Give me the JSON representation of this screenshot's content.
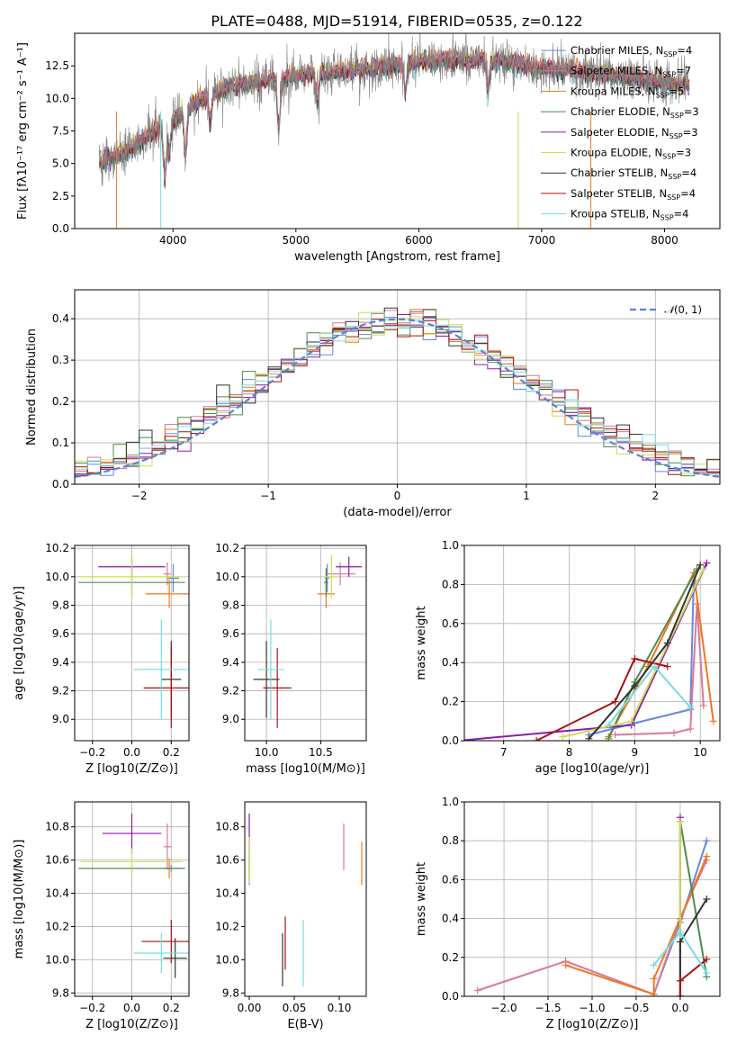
{
  "title": "PLATE=0488, MJD=51914, FIBERID=0535, z=0.122",
  "legend_prefix": [
    "Chabrier MILES, N",
    "Salpeter MILES, N",
    "Kroupa MILES, N",
    "Chabrier ELODIE, N",
    "Salpeter ELODIE, N",
    "Kroupa ELODIE, N",
    "Chabrier STELIB, N",
    "Salpeter STELIB, N",
    "Kroupa STELIB, N"
  ],
  "legend_sub": "SSP",
  "models": [
    {
      "name": "Chabrier MILES",
      "nssp": "=4",
      "color": "#6688dd"
    },
    {
      "name": "Salpeter MILES",
      "nssp": "=7",
      "color": "#dd7799"
    },
    {
      "name": "Kroupa MILES",
      "nssp": "=5",
      "color": "#ee7722"
    },
    {
      "name": "Chabrier ELODIE",
      "nssp": "=3",
      "color": "#4d8c4d"
    },
    {
      "name": "Salpeter ELODIE",
      "nssp": "=3",
      "color": "#8b1aaa"
    },
    {
      "name": "Kroupa ELODIE",
      "nssp": "=3",
      "color": "#ccdd55"
    },
    {
      "name": "Chabrier STELIB",
      "nssp": "=4",
      "color": "#333333"
    },
    {
      "name": "Salpeter STELIB",
      "nssp": "=4",
      "color": "#aa1111"
    },
    {
      "name": "Kroupa STELIB",
      "nssp": "=4",
      "color": "#77dde0"
    }
  ],
  "data_color": "#808080",
  "normal_color": "#5b80d6",
  "chart_data": [
    {
      "type": "line",
      "panel": "spectrum",
      "xlabel": "wavelength [Angstrom, rest frame]",
      "ylabel": "Flux [f",
      "ylabel_full": "Flux [fλ10⁻¹⁷ erg cm⁻² s⁻¹ A⁻¹]",
      "xlim": [
        3200,
        8450
      ],
      "ylim": [
        0,
        15.0
      ],
      "xticks": [
        "4000",
        "5000",
        "6000",
        "7000",
        "8000"
      ],
      "yticks": [
        "0.0",
        "2.5",
        "5.0",
        "7.5",
        "10.0",
        "12.5"
      ],
      "continuum": [
        [
          3400,
          5.1
        ],
        [
          3600,
          5.8
        ],
        [
          3800,
          7.2
        ],
        [
          4000,
          8.3
        ],
        [
          4200,
          9.8
        ],
        [
          4500,
          11.0
        ],
        [
          5000,
          11.7
        ],
        [
          5500,
          12.2
        ],
        [
          6000,
          12.8
        ],
        [
          6500,
          13.0
        ],
        [
          7000,
          12.4
        ],
        [
          7500,
          11.9
        ],
        [
          8000,
          11.2
        ],
        [
          8200,
          11.0
        ]
      ],
      "absorption_features": [
        [
          3934,
          0.0
        ],
        [
          3969,
          3.5
        ],
        [
          4102,
          2.2
        ],
        [
          4304,
          6.5
        ],
        [
          4861,
          3.5
        ],
        [
          5175,
          7.5
        ],
        [
          5890,
          8.5
        ],
        [
          6563,
          8.0
        ]
      ],
      "grid": false
    },
    {
      "type": "area",
      "panel": "residual-histogram",
      "xlabel": "(data-model)/error",
      "ylabel": "Normed distribution",
      "xlim": [
        -2.5,
        2.5
      ],
      "ylim": [
        0,
        0.47
      ],
      "xticks": [
        "−2",
        "−1",
        "0",
        "1",
        "2"
      ],
      "yticks": [
        "0.0",
        "0.1",
        "0.2",
        "0.3",
        "0.4"
      ],
      "series": [
        {
          "name": "N(0,1)",
          "mu": 0,
          "sigma": 1
        }
      ],
      "normal_label": "(0, 1)",
      "bin_width": 0.1,
      "grid": true
    },
    {
      "type": "scatter",
      "panel": "age-vs-metallicity",
      "xlabel": "Z [log",
      "xlabel_full": "Z [log10(Z/Z⊙)]",
      "ylabel_full": "age  [log10(age/yr)]",
      "xlim": [
        -0.29,
        0.29
      ],
      "ylim": [
        8.85,
        10.22
      ],
      "xticks": [
        "−0.2",
        "0.0",
        "0.2"
      ],
      "yticks": [
        "9.0",
        "9.2",
        "9.4",
        "9.6",
        "9.8",
        "10.0",
        "10.2"
      ],
      "points": [
        {
          "model": 0,
          "x": 0.21,
          "y": 9.99,
          "ex": 0.03,
          "ey": 0.1
        },
        {
          "model": 1,
          "x": 0.18,
          "y": 10.02,
          "ex": 0.02,
          "ey": 0.08
        },
        {
          "model": 2,
          "x": 0.19,
          "y": 9.88,
          "ex": 0.12,
          "ey": 0.1
        },
        {
          "model": 3,
          "x": 0.0,
          "y": 9.96,
          "ex": 0.27,
          "ey": 0.1
        },
        {
          "model": 4,
          "x": 0.0,
          "y": 10.07,
          "ex": 0.17,
          "ey": 0.07
        },
        {
          "model": 5,
          "x": 0.0,
          "y": 10.0,
          "ex": 0.26,
          "ey": 0.15
        },
        {
          "model": 6,
          "x": 0.2,
          "y": 9.28,
          "ex": 0.05,
          "ey": 0.27
        },
        {
          "model": 7,
          "x": 0.2,
          "y": 9.22,
          "ex": 0.14,
          "ey": 0.28
        },
        {
          "model": 8,
          "x": 0.15,
          "y": 9.35,
          "ex": 0.14,
          "ey": 0.35
        }
      ],
      "grid": true
    },
    {
      "type": "scatter",
      "panel": "age-vs-mass",
      "xlabel_full": "mass [log10(M/M⊙)]",
      "xlim": [
        9.8,
        10.92
      ],
      "ylim": [
        8.85,
        10.22
      ],
      "xticks": [
        "10.0",
        "10.5"
      ],
      "yticks": [
        "9.0",
        "9.2",
        "9.4",
        "9.6",
        "9.8",
        "10.0",
        "10.2"
      ],
      "points": [
        {
          "model": 0,
          "x": 10.56,
          "y": 9.99,
          "ex": 0.02,
          "ey": 0.1
        },
        {
          "model": 1,
          "x": 10.68,
          "y": 10.02,
          "ex": 0.14,
          "ey": 0.08
        },
        {
          "model": 2,
          "x": 10.55,
          "y": 9.88,
          "ex": 0.08,
          "ey": 0.1
        },
        {
          "model": 3,
          "x": 10.55,
          "y": 9.96,
          "ex": 0.02,
          "ey": 0.1
        },
        {
          "model": 4,
          "x": 10.76,
          "y": 10.07,
          "ex": 0.12,
          "ey": 0.07
        },
        {
          "model": 5,
          "x": 10.6,
          "y": 10.0,
          "ex": 0.06,
          "ey": 0.15
        },
        {
          "model": 6,
          "x": 10.0,
          "y": 9.28,
          "ex": 0.12,
          "ey": 0.27
        },
        {
          "model": 7,
          "x": 10.1,
          "y": 9.22,
          "ex": 0.13,
          "ey": 0.28
        },
        {
          "model": 8,
          "x": 10.04,
          "y": 9.35,
          "ex": 0.12,
          "ey": 0.35
        }
      ],
      "grid": true
    },
    {
      "type": "line",
      "panel": "mass-weight-vs-age",
      "xlabel_full": "age  [log10(age/yr)]",
      "ylabel": "mass weight",
      "xlim": [
        6.4,
        10.3
      ],
      "ylim": [
        0,
        1.0
      ],
      "xticks": [
        "7",
        "8",
        "9",
        "10"
      ],
      "yticks": [
        "0.0",
        "0.2",
        "0.4",
        "0.6",
        "0.8",
        "1.0"
      ],
      "series": [
        {
          "model": 0,
          "points": [
            [
              8.3,
              0.03
            ],
            [
              9.0,
              0.09
            ],
            [
              9.85,
              0.16
            ],
            [
              9.9,
              0.82
            ]
          ]
        },
        {
          "model": 1,
          "points": [
            [
              8.7,
              0.03
            ],
            [
              9.6,
              0.04
            ],
            [
              9.85,
              0.06
            ],
            [
              9.95,
              0.7
            ],
            [
              10.05,
              0.18
            ]
          ]
        },
        {
          "model": 2,
          "points": [
            [
              8.6,
              0.02
            ],
            [
              9.2,
              0.38
            ],
            [
              9.9,
              0.86
            ],
            [
              10.2,
              0.1
            ]
          ]
        },
        {
          "model": 3,
          "points": [
            [
              8.6,
              0.01
            ],
            [
              9.0,
              0.3
            ],
            [
              9.95,
              0.88
            ]
          ]
        },
        {
          "model": 4,
          "points": [
            [
              6.3,
              0.0
            ],
            [
              8.95,
              0.08
            ],
            [
              10.1,
              0.91
            ]
          ]
        },
        {
          "model": 5,
          "points": [
            [
              7.9,
              0.02
            ],
            [
              8.95,
              0.1
            ],
            [
              10.05,
              0.88
            ]
          ]
        },
        {
          "model": 6,
          "points": [
            [
              8.3,
              0.01
            ],
            [
              9.0,
              0.28
            ],
            [
              9.5,
              0.5
            ],
            [
              10.0,
              0.9
            ]
          ]
        },
        {
          "model": 7,
          "points": [
            [
              7.5,
              0.0
            ],
            [
              8.7,
              0.2
            ],
            [
              9.0,
              0.42
            ],
            [
              9.5,
              0.38
            ]
          ]
        },
        {
          "model": 8,
          "points": [
            [
              8.6,
              0.08
            ],
            [
              9.3,
              0.38
            ],
            [
              9.85,
              0.17
            ]
          ]
        }
      ],
      "grid": true
    },
    {
      "type": "scatter",
      "panel": "mass-vs-metallicity",
      "xlabel_full": "Z [log10(Z/Z⊙)]",
      "ylabel_full": "mass [log10(M/M⊙)]",
      "xlim": [
        -0.29,
        0.29
      ],
      "ylim": [
        9.78,
        10.95
      ],
      "xticks": [
        "−0.2",
        "0.0",
        "0.2"
      ],
      "yticks": [
        "9.8",
        "10.0",
        "10.2",
        "10.4",
        "10.6",
        "10.8"
      ],
      "points": [
        {
          "model": 0,
          "x": 0.2,
          "y": 10.55,
          "ex": 0.04,
          "ey": 0.02
        },
        {
          "model": 1,
          "x": 0.18,
          "y": 10.68,
          "ex": 0.02,
          "ey": 0.14
        },
        {
          "model": 2,
          "x": 0.19,
          "y": 10.55,
          "ex": 0.01,
          "ey": 0.06
        },
        {
          "model": 3,
          "x": 0.0,
          "y": 10.55,
          "ex": 0.27,
          "ey": 0.02
        },
        {
          "model": 4,
          "x": 0.0,
          "y": 10.76,
          "ex": 0.15,
          "ey": 0.12
        },
        {
          "model": 5,
          "x": 0.0,
          "y": 10.59,
          "ex": 0.26,
          "ey": 0.08
        },
        {
          "model": 6,
          "x": 0.22,
          "y": 10.01,
          "ex": 0.06,
          "ey": 0.12
        },
        {
          "model": 7,
          "x": 0.2,
          "y": 10.11,
          "ex": 0.15,
          "ey": 0.13
        },
        {
          "model": 8,
          "x": 0.15,
          "y": 10.04,
          "ex": 0.14,
          "ey": 0.12
        }
      ],
      "grid": true
    },
    {
      "type": "scatter",
      "panel": "mass-vs-extinction",
      "xlabel": "E(B-V)",
      "xlim": [
        -0.005,
        0.13
      ],
      "ylim": [
        9.78,
        10.95
      ],
      "xticks": [
        "0.00",
        "0.05",
        "0.10"
      ],
      "yticks": [
        "9.8",
        "10.0",
        "10.2",
        "10.4",
        "10.6",
        "10.8"
      ],
      "points": [
        {
          "model": 0,
          "x": 0.0,
          "y": 10.55,
          "ey": 0.1
        },
        {
          "model": 1,
          "x": 0.105,
          "y": 10.68,
          "ey": 0.14
        },
        {
          "model": 2,
          "x": 0.125,
          "y": 10.58,
          "ey": 0.13
        },
        {
          "model": 3,
          "x": 0.0,
          "y": 10.56,
          "ey": 0.08
        },
        {
          "model": 4,
          "x": 0.0,
          "y": 10.76,
          "ey": 0.12
        },
        {
          "model": 5,
          "x": 0.0,
          "y": 10.6,
          "ey": 0.14
        },
        {
          "model": 6,
          "x": 0.037,
          "y": 10.0,
          "ey": 0.16
        },
        {
          "model": 7,
          "x": 0.04,
          "y": 10.1,
          "ey": 0.16
        },
        {
          "model": 8,
          "x": 0.06,
          "y": 10.04,
          "ey": 0.2
        }
      ],
      "grid": false
    },
    {
      "type": "line",
      "panel": "mass-weight-vs-metallicity",
      "xlabel_full": "Z [log10(Z/Z⊙)]",
      "ylabel": "mass weight",
      "xlim": [
        -2.45,
        0.45
      ],
      "ylim": [
        0,
        1.0
      ],
      "xticks": [
        "−2.0",
        "−1.5",
        "−1.0",
        "−0.5",
        "0.0"
      ],
      "yticks": [
        "0.0",
        "0.2",
        "0.4",
        "0.6",
        "0.8",
        "1.0"
      ],
      "series": [
        {
          "model": 0,
          "points": [
            [
              -0.3,
              0.01
            ],
            [
              0.0,
              0.38
            ],
            [
              0.3,
              0.8
            ]
          ]
        },
        {
          "model": 1,
          "points": [
            [
              -2.3,
              0.03
            ],
            [
              -1.3,
              0.18
            ],
            [
              -0.3,
              0.01
            ],
            [
              0.0,
              0.4
            ],
            [
              0.3,
              0.7
            ]
          ]
        },
        {
          "model": 2,
          "points": [
            [
              -1.3,
              0.16
            ],
            [
              -0.3,
              0.01
            ],
            [
              -0.3,
              0.09
            ],
            [
              0.0,
              0.4
            ],
            [
              0.3,
              0.72
            ]
          ]
        },
        {
          "model": 3,
          "points": [
            [
              0.0,
              0.0
            ],
            [
              0.0,
              0.9
            ],
            [
              0.3,
              0.1
            ]
          ]
        },
        {
          "model": 4,
          "points": [
            [
              0.0,
              0.0
            ],
            [
              0.0,
              0.92
            ]
          ]
        },
        {
          "model": 5,
          "points": [
            [
              0.0,
              0.0
            ],
            [
              0.0,
              0.9
            ]
          ]
        },
        {
          "model": 6,
          "points": [
            [
              0.0,
              0.0
            ],
            [
              0.0,
              0.28
            ],
            [
              0.3,
              0.5
            ]
          ]
        },
        {
          "model": 7,
          "points": [
            [
              0.0,
              0.0
            ],
            [
              0.0,
              0.08
            ],
            [
              0.3,
              0.19
            ]
          ]
        },
        {
          "model": 8,
          "points": [
            [
              -0.3,
              0.16
            ],
            [
              0.0,
              0.33
            ],
            [
              0.3,
              0.12
            ]
          ]
        }
      ],
      "grid": true
    }
  ]
}
